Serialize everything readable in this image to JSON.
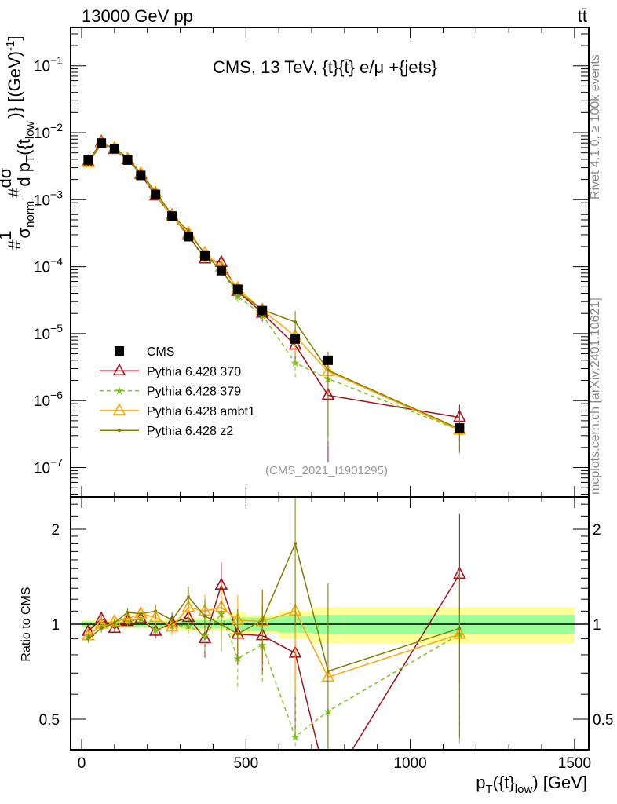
{
  "header": {
    "left": "13000 GeV pp",
    "right": "tt̄"
  },
  "side_texts": {
    "rivet": "Rivet 4.1.0, ≥ 100k events",
    "mcplots": "mcplots.cern.ch [arXiv:2401.10621]"
  },
  "chart_data": [
    {
      "type": "line",
      "title": "CMS, 13 TeV, {t}{t̄} e/μ +{jets}",
      "analysis": "(CMS_2021_I1901295)",
      "ylabel": {
        "p1": "#",
        "frac1_num": "1",
        "frac1_den": "σ",
        "frac1_den_sub": "norm",
        "p2": "#",
        "frac2_num": "dσ",
        "frac2_den": "d p",
        "frac2_den_sub": "T",
        "frac2_den_tail": "({t",
        "frac2_den_sub2": "low",
        "unit": ")} [(GeV)",
        "unit_sup": "-1",
        "unit_end": "]"
      },
      "yscale": "log",
      "ylim": [
        3.7e-08,
        0.37
      ],
      "yticks": [
        {
          "base": "10",
          "exp": "−1"
        },
        {
          "base": "10",
          "exp": "−2"
        },
        {
          "base": "10",
          "exp": "−3"
        },
        {
          "base": "10",
          "exp": "−4"
        },
        {
          "base": "10",
          "exp": "−5"
        },
        {
          "base": "10",
          "exp": "−6"
        },
        {
          "base": "10",
          "exp": "−7"
        }
      ],
      "ytick_values": [
        0.1,
        0.01,
        0.001,
        0.0001,
        1e-05,
        1e-06,
        1e-07
      ],
      "x": [
        20,
        60,
        100,
        140,
        180,
        225,
        275,
        325,
        375,
        425,
        475,
        550,
        650,
        750,
        1150
      ],
      "bin_edges": [
        0,
        40,
        80,
        120,
        160,
        200,
        250,
        300,
        350,
        400,
        450,
        500,
        600,
        700,
        800,
        1500
      ],
      "legend_position": "bottom-left",
      "series": [
        {
          "name": "CMS",
          "color": "#000000",
          "marker": "square",
          "values": [
            0.0039,
            0.007,
            0.0058,
            0.0039,
            0.0023,
            0.0012,
            0.00057,
            0.00028,
            0.000145,
            8.7e-05,
            4.6e-05,
            2.2e-05,
            8.3e-06,
            4e-06,
            3.9e-07
          ]
        },
        {
          "name": "Pythia 6.428 370",
          "color": "#a3101f",
          "marker": "triangle",
          "dash": false,
          "ratio": [
            0.95,
            1.04,
            0.97,
            1.02,
            1.04,
            0.95,
            1.01,
            1.05,
            0.9,
            1.33,
            0.93,
            0.92,
            0.81,
            0.3,
            1.44
          ]
        },
        {
          "name": "Pythia 6.428 379",
          "color": "#7fc31c",
          "marker": "star",
          "dash": true,
          "ratio": [
            0.92,
            0.99,
            1.0,
            1.02,
            1.04,
            0.96,
            0.99,
            0.99,
            0.92,
            1.08,
            0.78,
            0.86,
            0.44,
            0.53,
            0.93
          ]
        },
        {
          "name": "Pythia 6.428 ambt1",
          "color": "#ffa500",
          "marker": "triangle",
          "dash": false,
          "ratio": [
            0.92,
            1.0,
            1.02,
            1.04,
            1.08,
            1.05,
            0.98,
            1.13,
            1.1,
            1.13,
            1.03,
            1.02,
            1.1,
            0.68,
            0.93
          ]
        },
        {
          "name": "Pythia 6.428 z2",
          "color": "#7f7f00",
          "marker": "dot",
          "dash": false,
          "ratio": [
            0.9,
            0.97,
            1.01,
            1.09,
            1.08,
            1.1,
            1.03,
            1.22,
            1.06,
            1.0,
            0.93,
            1.03,
            1.8,
            0.71,
            0.97
          ]
        }
      ],
      "mc_rel_err": [
        0.03,
        0.03,
        0.03,
        0.03,
        0.04,
        0.05,
        0.06,
        0.08,
        0.13,
        0.18,
        0.2,
        0.25,
        0.45,
        0.9,
        0.55
      ]
    },
    {
      "type": "line",
      "ylabel": "Ratio to CMS",
      "xlabel": {
        "main": "p",
        "sub": "T",
        "mid": "({t}",
        "sub2": "low",
        "end": ") [GeV]"
      },
      "yscale": "log",
      "ylim": [
        0.4,
        2.53
      ],
      "yticks": [
        "2",
        "1",
        "0.5"
      ],
      "ytick_values": [
        2,
        1,
        0.5
      ],
      "xlim": [
        -33,
        1543
      ],
      "xticks": [
        "0",
        "500",
        "1000",
        "1500"
      ],
      "xtick_values": [
        0,
        500,
        1000,
        1500
      ],
      "band_inner": [
        0.02,
        0.02,
        0.02,
        0.02,
        0.02,
        0.02,
        0.02,
        0.03,
        0.03,
        0.03,
        0.05,
        0.05,
        0.06,
        0.07,
        0.07
      ],
      "band_outer": [
        0.03,
        0.03,
        0.03,
        0.03,
        0.03,
        0.03,
        0.04,
        0.05,
        0.05,
        0.05,
        0.09,
        0.07,
        0.1,
        0.13,
        0.13
      ]
    }
  ]
}
